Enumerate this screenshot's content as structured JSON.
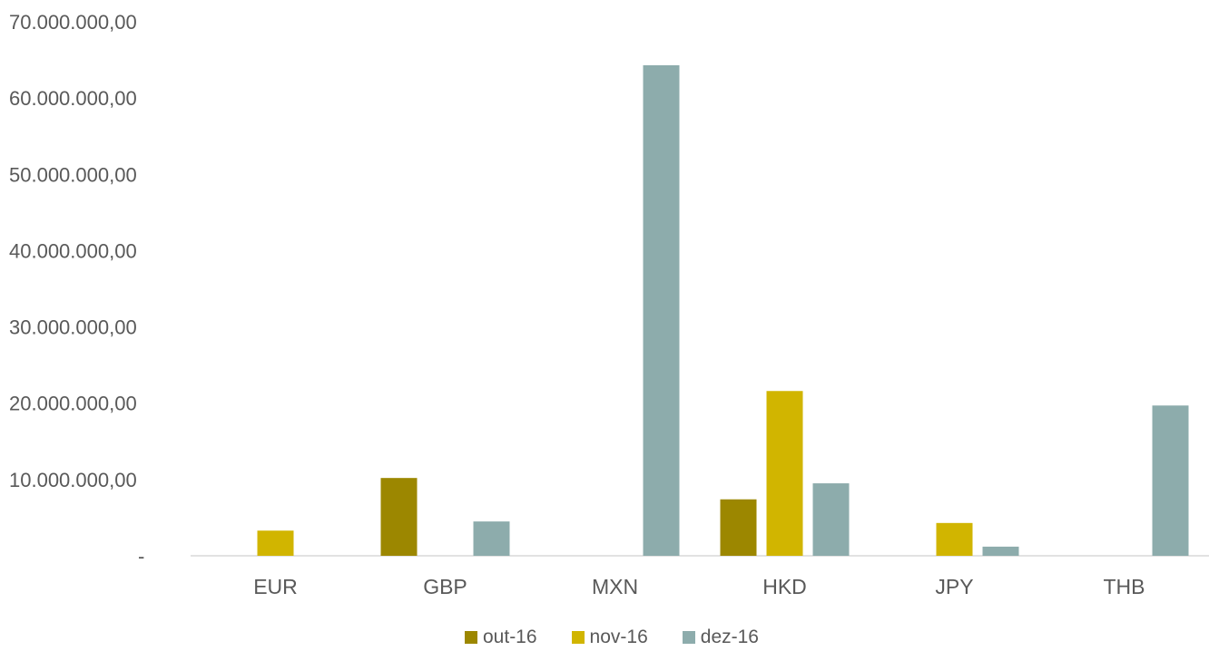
{
  "chart_data": {
    "type": "bar",
    "categories": [
      "EUR",
      "GBP",
      "MXN",
      "HKD",
      "JPY",
      "THB"
    ],
    "series": [
      {
        "name": "out-16",
        "color": "#9C8700",
        "values": [
          0,
          10200000,
          0,
          7400000,
          0,
          0
        ]
      },
      {
        "name": "nov-16",
        "color": "#D1B500",
        "values": [
          3300000,
          0,
          0,
          21600000,
          4300000,
          0
        ]
      },
      {
        "name": "dez-16",
        "color": "#8DACAC",
        "values": [
          0,
          4500000,
          64300000,
          9500000,
          1200000,
          19700000
        ]
      }
    ],
    "ylim": [
      0,
      70000000
    ],
    "y_ticks": [
      {
        "value": 0,
        "label": "-"
      },
      {
        "value": 10000000,
        "label": "10.000.000,00"
      },
      {
        "value": 20000000,
        "label": "20.000.000,00"
      },
      {
        "value": 30000000,
        "label": "30.000.000,00"
      },
      {
        "value": 40000000,
        "label": "40.000.000,00"
      },
      {
        "value": 50000000,
        "label": "50.000.000,00"
      },
      {
        "value": 60000000,
        "label": "60.000.000,00"
      },
      {
        "value": 70000000,
        "label": "70.000.000,00"
      }
    ],
    "grid": false,
    "legend_position": "bottom"
  }
}
